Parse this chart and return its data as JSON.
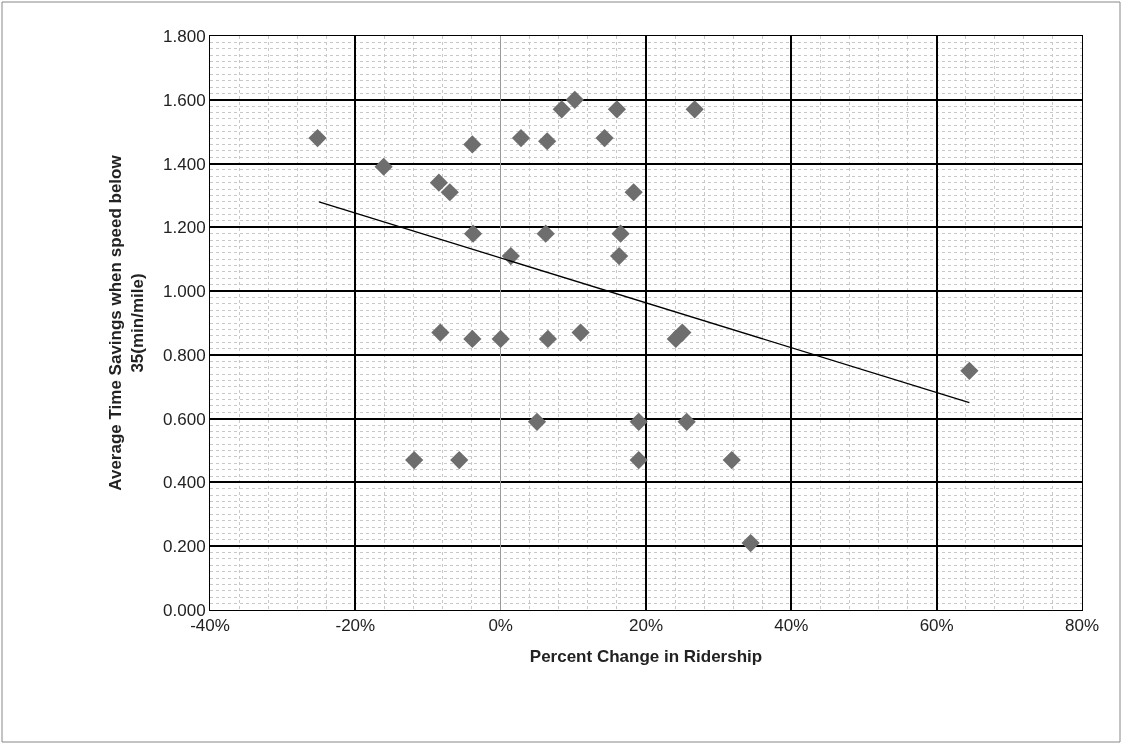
{
  "chart_data": {
    "type": "scatter",
    "xlabel": "Percent Change in Ridership",
    "ylabel": "Average Time Savings when speed below\n35(min/mile)",
    "xlim": [
      -40,
      80
    ],
    "xticks": [
      {
        "value": -40,
        "label": "-40%"
      },
      {
        "value": -20,
        "label": "-20%"
      },
      {
        "value": 0,
        "label": "0%"
      },
      {
        "value": 20,
        "label": "20%"
      },
      {
        "value": 40,
        "label": "40%"
      },
      {
        "value": 60,
        "label": "60%"
      },
      {
        "value": 80,
        "label": "80%"
      }
    ],
    "ylim": [
      0,
      1.8
    ],
    "yticks": [
      {
        "value": 0,
        "label": "0.000"
      },
      {
        "value": 0.2,
        "label": "0.200"
      },
      {
        "value": 0.4,
        "label": "0.400"
      },
      {
        "value": 0.6,
        "label": "0.600"
      },
      {
        "value": 0.8,
        "label": "0.800"
      },
      {
        "value": 1.0,
        "label": "1.000"
      },
      {
        "value": 1.2,
        "label": "1.200"
      },
      {
        "value": 1.4,
        "label": "1.400"
      },
      {
        "value": 1.6,
        "label": "1.600"
      },
      {
        "value": 1.8,
        "label": "1.800"
      }
    ],
    "grid": true,
    "marker": "diamond",
    "series": [
      {
        "color": "#6e6e6e",
        "x": [
          -25.2,
          -16.1,
          -8.5,
          -7.0,
          -3.9,
          2.8,
          6.4,
          8.4,
          10.2,
          16.0,
          14.3,
          18.3,
          26.7,
          -3.8,
          1.4,
          6.2,
          16.5,
          16.3,
          -8.3,
          -3.9,
          0.0,
          6.5,
          11.0,
          24.1,
          25.0,
          5.0,
          19.0,
          25.6,
          -11.9,
          -5.7,
          19.0,
          31.8,
          34.4,
          64.5
        ],
        "values": [
          1.48,
          1.39,
          1.34,
          1.31,
          1.46,
          1.48,
          1.47,
          1.57,
          1.6,
          1.57,
          1.48,
          1.31,
          1.57,
          1.18,
          1.11,
          1.18,
          1.18,
          1.11,
          0.87,
          0.85,
          0.85,
          0.85,
          0.87,
          0.85,
          0.87,
          0.59,
          0.59,
          0.59,
          0.47,
          0.47,
          0.47,
          0.47,
          0.21,
          0.75
        ]
      },
      {
        "type": "line",
        "color": "#000000",
        "line_style": "solid",
        "marker": "none",
        "x": [
          -25.0,
          64.5
        ],
        "values": [
          1.28,
          0.65
        ]
      }
    ]
  }
}
